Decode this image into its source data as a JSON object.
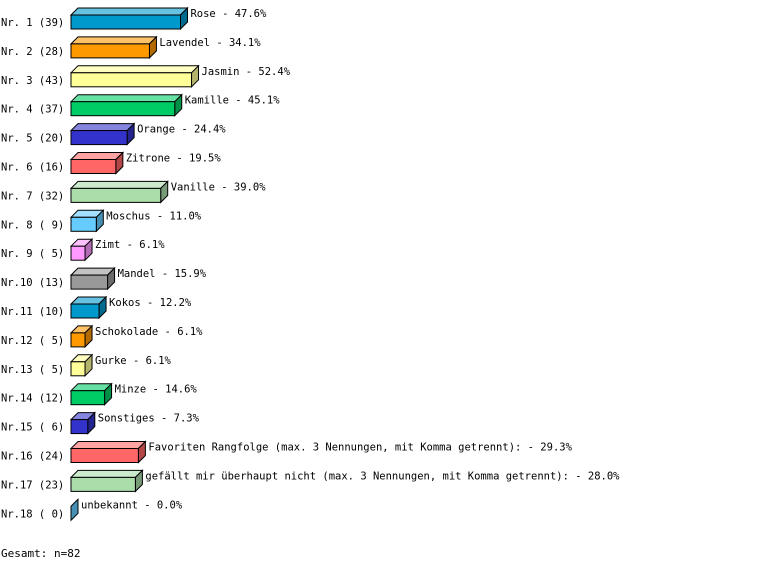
{
  "chart_data": {
    "type": "bar",
    "orientation": "horizontal",
    "style": "3d",
    "categories": [
      "Rose",
      "Lavendel",
      "Jasmin",
      "Kamille",
      "Orange",
      "Zitrone",
      "Vanille",
      "Moschus",
      "Zimt",
      "Mandel",
      "Kokos",
      "Schokolade",
      "Gurke",
      "Minze",
      "Sonstiges",
      "Favoriten Rangfolge (max. 3 Nennungen, mit Komma getrennt):",
      "gefällt mir überhaupt nicht (max. 3 Nennungen, mit Komma getrennt):",
      "unbekannt"
    ],
    "row_labels": [
      "Nr. 1 (39)",
      "Nr. 2 (28)",
      "Nr. 3 (43)",
      "Nr. 4 (37)",
      "Nr. 5 (20)",
      "Nr. 6 (16)",
      "Nr. 7 (32)",
      "Nr. 8 ( 9)",
      "Nr. 9 ( 5)",
      "Nr.10 (13)",
      "Nr.11 (10)",
      "Nr.12 ( 5)",
      "Nr.13 ( 5)",
      "Nr.14 (12)",
      "Nr.15 ( 6)",
      "Nr.16 (24)",
      "Nr.17 (23)",
      "Nr.18 ( 0)"
    ],
    "counts": [
      39,
      28,
      43,
      37,
      20,
      16,
      32,
      9,
      5,
      13,
      10,
      5,
      5,
      12,
      6,
      24,
      23,
      0
    ],
    "values": [
      47.6,
      34.1,
      52.4,
      45.1,
      24.4,
      19.5,
      39.0,
      11.0,
      6.1,
      15.9,
      12.2,
      6.1,
      6.1,
      14.6,
      7.3,
      29.3,
      28.0,
      0.0
    ],
    "value_labels": [
      "47.6%",
      "34.1%",
      "52.4%",
      "45.1%",
      "24.4%",
      "19.5%",
      "39.0%",
      "11.0%",
      "6.1%",
      "15.9%",
      "12.2%",
      "6.1%",
      "6.1%",
      "14.6%",
      "7.3%",
      "29.3%",
      "28.0%",
      "0.0%"
    ],
    "colors": [
      "#0099cc",
      "#ff9900",
      "#ffff99",
      "#00cc66",
      "#3333cc",
      "#ff6666",
      "#aaddaa",
      "#66ccff",
      "#ff99ff",
      "#999999"
    ],
    "total_label": "Gesamt: n=82"
  }
}
